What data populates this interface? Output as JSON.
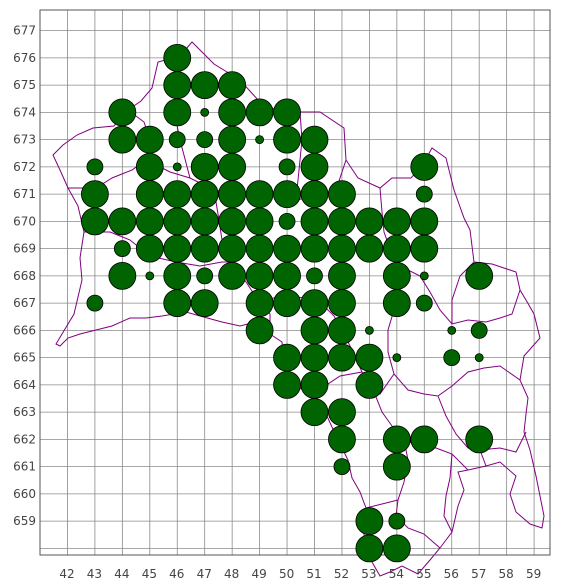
{
  "map": {
    "x_ticks": [
      "42",
      "43",
      "44",
      "45",
      "46",
      "47",
      "48",
      "49",
      "50",
      "51",
      "52",
      "53",
      "54",
      "55",
      "56",
      "57",
      "58",
      "59"
    ],
    "y_ticks": [
      "677",
      "676",
      "675",
      "674",
      "673",
      "672",
      "671",
      "670",
      "669",
      "668",
      "667",
      "666",
      "665",
      "664",
      "663",
      "662",
      "661",
      "660",
      "659"
    ],
    "colors": {
      "grid": "#8a8a8a",
      "frame": "#555555",
      "boundary": "#800080",
      "dot_fill": "#006400",
      "dot_stroke": "#000000"
    },
    "dots": [
      {
        "x": 46,
        "y": 676,
        "s": "large"
      },
      {
        "x": 46,
        "y": 675,
        "s": "large"
      },
      {
        "x": 47,
        "y": 675,
        "s": "large"
      },
      {
        "x": 48,
        "y": 675,
        "s": "large"
      },
      {
        "x": 44,
        "y": 674,
        "s": "large"
      },
      {
        "x": 46,
        "y": 674,
        "s": "large"
      },
      {
        "x": 47,
        "y": 674,
        "s": "tiny"
      },
      {
        "x": 48,
        "y": 674,
        "s": "large"
      },
      {
        "x": 49,
        "y": 674,
        "s": "large"
      },
      {
        "x": 50,
        "y": 674,
        "s": "large"
      },
      {
        "x": 44,
        "y": 673,
        "s": "large"
      },
      {
        "x": 45,
        "y": 673,
        "s": "large"
      },
      {
        "x": 46,
        "y": 673,
        "s": "small"
      },
      {
        "x": 47,
        "y": 673,
        "s": "small"
      },
      {
        "x": 48,
        "y": 673,
        "s": "large"
      },
      {
        "x": 49,
        "y": 673,
        "s": "tiny"
      },
      {
        "x": 50,
        "y": 673,
        "s": "large"
      },
      {
        "x": 51,
        "y": 673,
        "s": "large"
      },
      {
        "x": 43,
        "y": 672,
        "s": "small"
      },
      {
        "x": 45,
        "y": 672,
        "s": "large"
      },
      {
        "x": 46,
        "y": 672,
        "s": "tiny"
      },
      {
        "x": 47,
        "y": 672,
        "s": "large"
      },
      {
        "x": 48,
        "y": 672,
        "s": "large"
      },
      {
        "x": 50,
        "y": 672,
        "s": "small"
      },
      {
        "x": 51,
        "y": 672,
        "s": "large"
      },
      {
        "x": 55,
        "y": 672,
        "s": "large"
      },
      {
        "x": 43,
        "y": 671,
        "s": "large"
      },
      {
        "x": 45,
        "y": 671,
        "s": "large"
      },
      {
        "x": 46,
        "y": 671,
        "s": "large"
      },
      {
        "x": 47,
        "y": 671,
        "s": "large"
      },
      {
        "x": 48,
        "y": 671,
        "s": "large"
      },
      {
        "x": 49,
        "y": 671,
        "s": "large"
      },
      {
        "x": 50,
        "y": 671,
        "s": "large"
      },
      {
        "x": 51,
        "y": 671,
        "s": "large"
      },
      {
        "x": 52,
        "y": 671,
        "s": "large"
      },
      {
        "x": 55,
        "y": 671,
        "s": "small"
      },
      {
        "x": 43,
        "y": 670,
        "s": "large"
      },
      {
        "x": 44,
        "y": 670,
        "s": "large"
      },
      {
        "x": 45,
        "y": 670,
        "s": "large"
      },
      {
        "x": 46,
        "y": 670,
        "s": "large"
      },
      {
        "x": 47,
        "y": 670,
        "s": "large"
      },
      {
        "x": 48,
        "y": 670,
        "s": "large"
      },
      {
        "x": 49,
        "y": 670,
        "s": "large"
      },
      {
        "x": 50,
        "y": 670,
        "s": "small"
      },
      {
        "x": 51,
        "y": 670,
        "s": "large"
      },
      {
        "x": 52,
        "y": 670,
        "s": "large"
      },
      {
        "x": 53,
        "y": 670,
        "s": "large"
      },
      {
        "x": 54,
        "y": 670,
        "s": "large"
      },
      {
        "x": 55,
        "y": 670,
        "s": "large"
      },
      {
        "x": 44,
        "y": 669,
        "s": "small"
      },
      {
        "x": 45,
        "y": 669,
        "s": "large"
      },
      {
        "x": 46,
        "y": 669,
        "s": "large"
      },
      {
        "x": 47,
        "y": 669,
        "s": "large"
      },
      {
        "x": 48,
        "y": 669,
        "s": "large"
      },
      {
        "x": 49,
        "y": 669,
        "s": "large"
      },
      {
        "x": 50,
        "y": 669,
        "s": "large"
      },
      {
        "x": 51,
        "y": 669,
        "s": "large"
      },
      {
        "x": 52,
        "y": 669,
        "s": "large"
      },
      {
        "x": 53,
        "y": 669,
        "s": "large"
      },
      {
        "x": 54,
        "y": 669,
        "s": "large"
      },
      {
        "x": 55,
        "y": 669,
        "s": "large"
      },
      {
        "x": 44,
        "y": 668,
        "s": "large"
      },
      {
        "x": 45,
        "y": 668,
        "s": "tiny"
      },
      {
        "x": 46,
        "y": 668,
        "s": "large"
      },
      {
        "x": 47,
        "y": 668,
        "s": "small"
      },
      {
        "x": 48,
        "y": 668,
        "s": "large"
      },
      {
        "x": 49,
        "y": 668,
        "s": "large"
      },
      {
        "x": 50,
        "y": 668,
        "s": "large"
      },
      {
        "x": 51,
        "y": 668,
        "s": "small"
      },
      {
        "x": 52,
        "y": 668,
        "s": "large"
      },
      {
        "x": 54,
        "y": 668,
        "s": "large"
      },
      {
        "x": 55,
        "y": 668,
        "s": "tiny"
      },
      {
        "x": 57,
        "y": 668,
        "s": "large"
      },
      {
        "x": 43,
        "y": 667,
        "s": "small"
      },
      {
        "x": 46,
        "y": 667,
        "s": "large"
      },
      {
        "x": 47,
        "y": 667,
        "s": "large"
      },
      {
        "x": 49,
        "y": 667,
        "s": "large"
      },
      {
        "x": 50,
        "y": 667,
        "s": "large"
      },
      {
        "x": 51,
        "y": 667,
        "s": "large"
      },
      {
        "x": 52,
        "y": 667,
        "s": "large"
      },
      {
        "x": 54,
        "y": 667,
        "s": "large"
      },
      {
        "x": 55,
        "y": 667,
        "s": "small"
      },
      {
        "x": 49,
        "y": 666,
        "s": "large"
      },
      {
        "x": 51,
        "y": 666,
        "s": "large"
      },
      {
        "x": 52,
        "y": 666,
        "s": "large"
      },
      {
        "x": 53,
        "y": 666,
        "s": "tiny"
      },
      {
        "x": 56,
        "y": 666,
        "s": "tiny"
      },
      {
        "x": 57,
        "y": 666,
        "s": "small"
      },
      {
        "x": 50,
        "y": 665,
        "s": "large"
      },
      {
        "x": 51,
        "y": 665,
        "s": "large"
      },
      {
        "x": 52,
        "y": 665,
        "s": "large"
      },
      {
        "x": 53,
        "y": 665,
        "s": "large"
      },
      {
        "x": 54,
        "y": 665,
        "s": "tiny"
      },
      {
        "x": 56,
        "y": 665,
        "s": "small"
      },
      {
        "x": 57,
        "y": 665,
        "s": "tiny"
      },
      {
        "x": 50,
        "y": 664,
        "s": "large"
      },
      {
        "x": 51,
        "y": 664,
        "s": "large"
      },
      {
        "x": 53,
        "y": 664,
        "s": "large"
      },
      {
        "x": 51,
        "y": 663,
        "s": "large"
      },
      {
        "x": 52,
        "y": 663,
        "s": "large"
      },
      {
        "x": 52,
        "y": 662,
        "s": "large"
      },
      {
        "x": 54,
        "y": 662,
        "s": "large"
      },
      {
        "x": 55,
        "y": 662,
        "s": "large"
      },
      {
        "x": 57,
        "y": 662,
        "s": "large"
      },
      {
        "x": 52,
        "y": 661,
        "s": "small"
      },
      {
        "x": 54,
        "y": 661,
        "s": "large"
      },
      {
        "x": 53,
        "y": 659,
        "s": "large"
      },
      {
        "x": 54,
        "y": 659,
        "s": "small"
      },
      {
        "x": 53,
        "y": 658,
        "s": "large"
      },
      {
        "x": 54,
        "y": 658,
        "s": "large"
      }
    ]
  }
}
